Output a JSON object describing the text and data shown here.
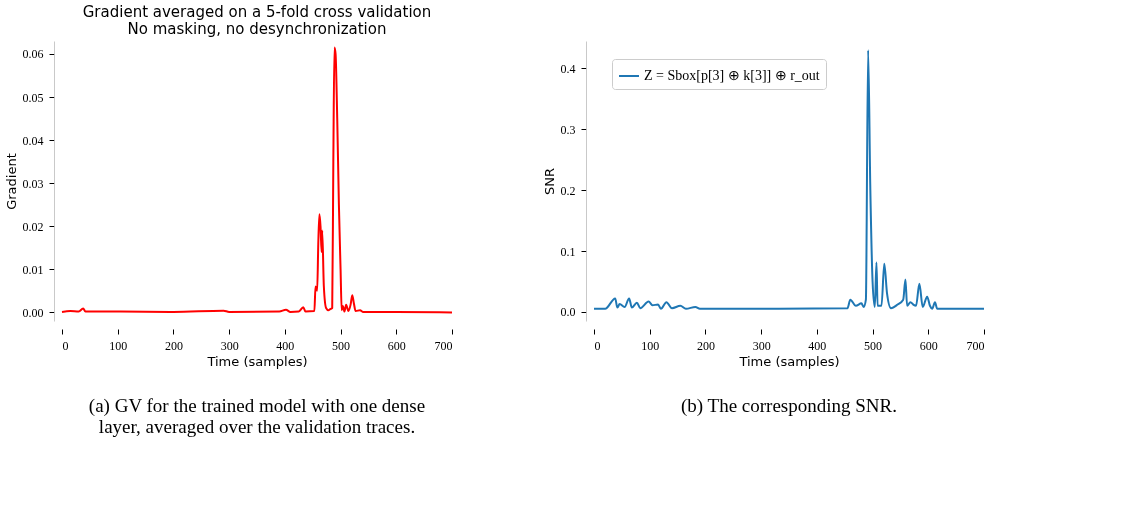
{
  "chart_data": [
    {
      "type": "line",
      "title": "Gradient averaged on a 5-fold cross validation",
      "subtitle": "No masking, no desynchronization",
      "xlabel": "Time (samples)",
      "ylabel": "Gradient",
      "xlim": [
        0,
        700
      ],
      "xticks": [
        0,
        100,
        200,
        300,
        400,
        500,
        600,
        700
      ],
      "ylim": [
        -0.002,
        0.063
      ],
      "yticks": [
        {
          "value": 0,
          "label": "0.00"
        },
        0.01,
        0.02,
        0.03,
        0.04,
        0.05,
        0.06
      ],
      "grid": false,
      "series": [
        {
          "color": "#ff0000",
          "x": [
            0,
            15,
            30,
            38,
            42,
            100,
            200,
            290,
            300,
            390,
            402,
            410,
            425,
            433,
            437,
            453,
            455,
            458,
            460,
            462,
            464,
            466,
            467,
            470,
            474,
            478,
            482,
            485,
            487,
            489,
            491,
            494,
            497,
            500,
            502,
            504,
            507,
            510,
            514,
            518,
            521,
            524,
            527,
            535,
            540,
            600,
            700
          ],
          "values": [
            0.0001,
            0.0003,
            0.0002,
            0.0009,
            0.0002,
            0.0002,
            0.0001,
            0.0004,
            0.0001,
            0.0002,
            0.0006,
            0.0001,
            0.0002,
            0.0012,
            0.0002,
            0.0003,
            0.006,
            0.005,
            0.016,
            0.0228,
            0.02,
            0.014,
            0.019,
            0.006,
            0.001,
            0.0005,
            0.0008,
            0.001,
            0.035,
            0.0615,
            0.06,
            0.045,
            0.025,
            0.01,
            0.0005,
            0.0015,
            0.0002,
            0.0018,
            0.0003,
            0.0018,
            0.004,
            0.002,
            0.0003,
            0.0005,
            0.0001,
            0.0001,
            0.0
          ]
        }
      ],
      "annotations": [
        "(a) GV for the trained model with one dense layer, averaged over the validation traces."
      ]
    },
    {
      "type": "line",
      "xlabel": "Time (samples)",
      "ylabel": "SNR",
      "xlim": [
        0,
        700
      ],
      "xticks": [
        0,
        100,
        200,
        300,
        400,
        500,
        600,
        700
      ],
      "ylim": [
        -0.015,
        0.445
      ],
      "yticks": [
        {
          "value": 0,
          "label": "0.0"
        },
        0.1,
        0.2,
        0.3,
        0.4
      ],
      "grid": false,
      "legend": "top left",
      "series": [
        {
          "name": "Z = Sbox[p[3] ⊕ k[3]] ⊕ r_out",
          "color": "#1f77b4",
          "x": [
            0,
            20,
            38,
            42,
            46,
            55,
            63,
            68,
            77,
            83,
            98,
            105,
            115,
            120,
            130,
            140,
            155,
            165,
            182,
            190,
            300,
            455,
            460,
            470,
            480,
            484,
            488,
            492,
            496,
            500,
            504,
            507,
            509,
            516,
            521,
            526,
            533,
            545,
            555,
            559,
            562,
            568,
            573,
            578,
            584,
            590,
            598,
            603,
            607,
            612,
            616,
            700
          ],
          "values": [
            0.005,
            0.005,
            0.022,
            0.007,
            0.013,
            0.008,
            0.022,
            0.007,
            0.015,
            0.006,
            0.017,
            0.011,
            0.012,
            0.005,
            0.016,
            0.006,
            0.01,
            0.005,
            0.008,
            0.005,
            0.005,
            0.006,
            0.02,
            0.01,
            0.014,
            0.008,
            0.02,
            0.43,
            0.2,
            0.05,
            0.008,
            0.081,
            0.01,
            0.01,
            0.079,
            0.03,
            0.006,
            0.012,
            0.02,
            0.053,
            0.01,
            0.016,
            0.012,
            0.01,
            0.046,
            0.008,
            0.025,
            0.01,
            0.005,
            0.016,
            0.005,
            0.005
          ]
        }
      ],
      "annotations": [
        "(b) The corresponding SNR."
      ]
    }
  ]
}
